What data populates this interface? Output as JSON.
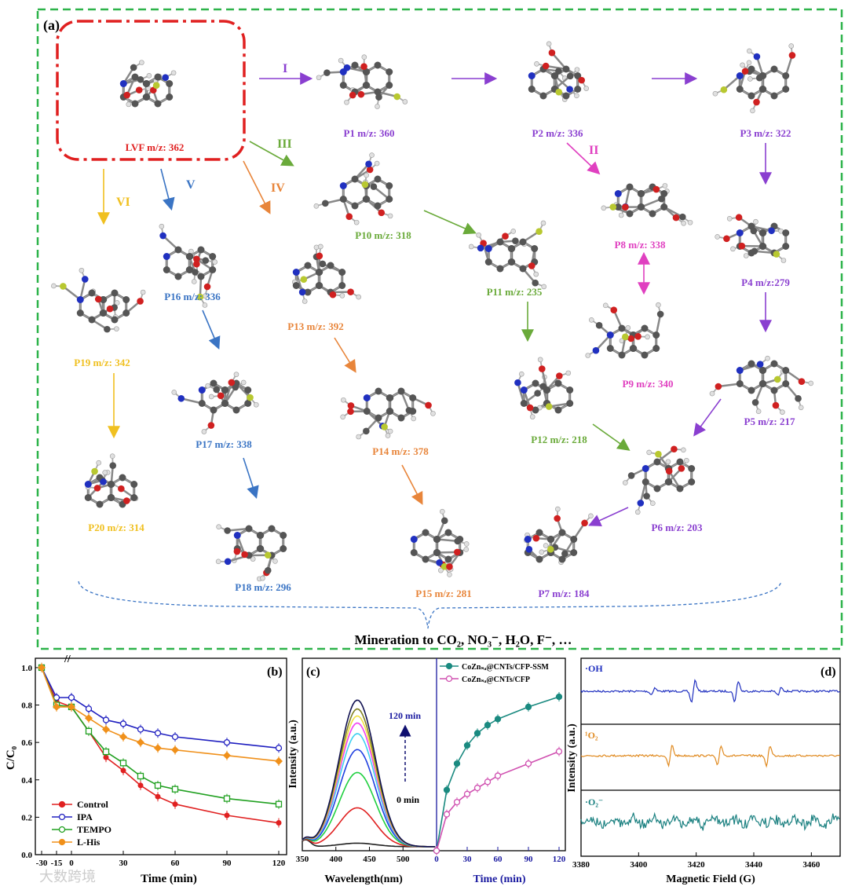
{
  "panel_a": {
    "label": "(a)",
    "footer": "Mineration to CO₂, NO₃⁻, H₂O, F⁻, …",
    "pathways": [
      "I",
      "II",
      "III",
      "IV",
      "V",
      "VI"
    ],
    "colors": {
      "red": "#e02020",
      "purple": "#8a3fd0",
      "magenta": "#e040c0",
      "green": "#6aaa3a",
      "orange": "#e8853a",
      "blue": "#3a74c4",
      "yellow": "#f0c020",
      "frame": "#2db34a"
    },
    "compounds": [
      {
        "id": "LVF",
        "label": "LVF  m/z: 362"
      },
      {
        "id": "P1",
        "label": "P1 m/z: 360"
      },
      {
        "id": "P2",
        "label": "P2 m/z: 336"
      },
      {
        "id": "P3",
        "label": "P3 m/z: 322"
      },
      {
        "id": "P4",
        "label": "P4 m/z:279"
      },
      {
        "id": "P5",
        "label": "P5 m/z: 217"
      },
      {
        "id": "P6",
        "label": "P6 m/z: 203"
      },
      {
        "id": "P7",
        "label": "P7 m/z: 184"
      },
      {
        "id": "P8",
        "label": "P8 m/z: 338"
      },
      {
        "id": "P9",
        "label": "P9 m/z: 340"
      },
      {
        "id": "P10",
        "label": "P10 m/z: 318"
      },
      {
        "id": "P11",
        "label": "P11 m/z: 235"
      },
      {
        "id": "P12",
        "label": "P12 m/z: 218"
      },
      {
        "id": "P13",
        "label": "P13 m/z: 392"
      },
      {
        "id": "P14",
        "label": "P14 m/z: 378"
      },
      {
        "id": "P15",
        "label": "P15 m/z: 281"
      },
      {
        "id": "P16",
        "label": "P16 m/z: 336"
      },
      {
        "id": "P17",
        "label": "P17 m/z: 338"
      },
      {
        "id": "P18",
        "label": "P18 m/z: 296"
      },
      {
        "id": "P19",
        "label": "P19 m/z: 342"
      },
      {
        "id": "P20",
        "label": "P20 m/z: 314"
      }
    ]
  },
  "panel_b": {
    "label": "(b)",
    "xlabel": "Time (min)",
    "ylabel": "C/C₀",
    "yticks": [
      "0.0",
      "0.2",
      "0.4",
      "0.6",
      "0.8",
      "1.0"
    ],
    "xticks": [
      "-30",
      "-15",
      "0",
      "30",
      "60",
      "90",
      "120"
    ],
    "series": [
      {
        "name": "Control",
        "color": "#e02020",
        "x": [
          -30,
          -15,
          0,
          10,
          20,
          30,
          40,
          50,
          60,
          90,
          120
        ],
        "y": [
          1.0,
          0.82,
          0.79,
          0.66,
          0.52,
          0.45,
          0.37,
          0.31,
          0.27,
          0.21,
          0.17
        ]
      },
      {
        "name": "IPA",
        "color": "#2020c0",
        "x": [
          -30,
          -15,
          0,
          10,
          20,
          30,
          40,
          50,
          60,
          90,
          120
        ],
        "y": [
          1.0,
          0.84,
          0.84,
          0.78,
          0.72,
          0.7,
          0.67,
          0.65,
          0.63,
          0.6,
          0.57
        ]
      },
      {
        "name": "TEMPO",
        "color": "#20a020",
        "x": [
          -30,
          -15,
          0,
          10,
          20,
          30,
          40,
          50,
          60,
          90,
          120
        ],
        "y": [
          1.0,
          0.8,
          0.79,
          0.66,
          0.55,
          0.49,
          0.42,
          0.37,
          0.35,
          0.3,
          0.27
        ]
      },
      {
        "name": "L-His",
        "color": "#f0901a",
        "x": [
          -30,
          -15,
          0,
          10,
          20,
          30,
          40,
          50,
          60,
          90,
          120
        ],
        "y": [
          1.0,
          0.79,
          0.79,
          0.73,
          0.67,
          0.63,
          0.6,
          0.57,
          0.56,
          0.53,
          0.5
        ]
      }
    ]
  },
  "panel_c": {
    "label": "(c)",
    "xlabel_left": "Wavelength(nm)",
    "xlabel_right": "Time (min)",
    "ylabel": "Intensity (a.u.)",
    "xticks_left": [
      "350",
      "400",
      "450",
      "500"
    ],
    "xticks_right": [
      "0",
      "30",
      "60",
      "90",
      "120"
    ],
    "annot_top": "120 min",
    "annot_bottom": "0 min",
    "legend": [
      "CoZnₛₐ@CNTs/CFP-SSM",
      "CoZnₛₐ@CNTs/CFP"
    ],
    "spectra_peaks": [
      0.02,
      0.22,
      0.42,
      0.55,
      0.64,
      0.7,
      0.74,
      0.78,
      0.83
    ],
    "spectra_colors": [
      "#202020",
      "#e02020",
      "#20d040",
      "#2040e0",
      "#40d0f0",
      "#f040f0",
      "#f0e040",
      "#808020",
      "#101050"
    ],
    "series_ssm": {
      "color": "#1a8a80",
      "x": [
        0,
        10,
        20,
        30,
        40,
        50,
        60,
        90,
        120
      ],
      "y": [
        0.0,
        0.3,
        0.43,
        0.52,
        0.58,
        0.62,
        0.65,
        0.71,
        0.76
      ]
    },
    "series_cfp": {
      "color": "#d050b0",
      "x": [
        0,
        10,
        20,
        30,
        40,
        50,
        60,
        90,
        120
      ],
      "y": [
        0.0,
        0.18,
        0.24,
        0.28,
        0.31,
        0.34,
        0.37,
        0.43,
        0.49
      ]
    }
  },
  "panel_d": {
    "label": "(d)",
    "xlabel": "Magnetic Field (G)",
    "ylabel": "Intensity (a.u.)",
    "xticks": [
      "3380",
      "3400",
      "3420",
      "3440",
      "3460"
    ],
    "traces": [
      {
        "name": "·OH",
        "color": "#2030c0"
      },
      {
        "name": "¹O₂",
        "color": "#e08a20"
      },
      {
        "name": "·O₂⁻",
        "color": "#1a8080"
      }
    ]
  },
  "watermark": "大数跨境"
}
